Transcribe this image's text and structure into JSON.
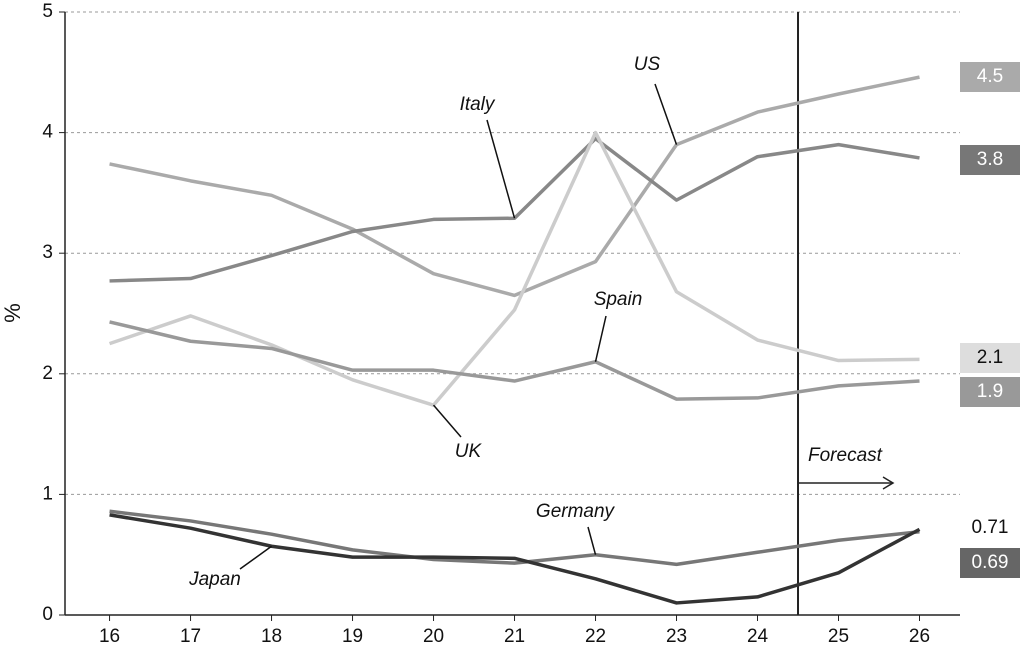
{
  "chart_data": {
    "type": "line",
    "y_label": "%",
    "x": [
      16,
      17,
      18,
      19,
      20,
      21,
      22,
      23,
      24,
      25,
      26
    ],
    "xlim": [
      15.45,
      26.5
    ],
    "xticks": [
      16,
      17,
      18,
      19,
      20,
      21,
      22,
      23,
      24,
      25,
      26
    ],
    "ylim": [
      0,
      5
    ],
    "yticks": [
      0,
      1,
      2,
      3,
      4,
      5
    ],
    "grid": true,
    "forecast": {
      "label": "Forecast",
      "x": 24.5
    },
    "series": [
      {
        "name": "US",
        "color": "#aaaaaa",
        "label_fill": "#aaaaaa",
        "end_label": "4.5",
        "values": [
          3.74,
          3.6,
          3.48,
          3.2,
          2.83,
          2.65,
          2.93,
          3.9,
          4.17,
          4.32,
          4.46
        ]
      },
      {
        "name": "Italy",
        "color": "#888888",
        "label_fill": "#777777",
        "end_label": "3.8",
        "values": [
          2.77,
          2.79,
          2.98,
          3.18,
          3.28,
          3.29,
          3.95,
          3.44,
          3.8,
          3.9,
          3.79
        ]
      },
      {
        "name": "UK",
        "color": "#cccccc",
        "label_fill": "#dddddd",
        "end_label": "2.1",
        "values": [
          2.25,
          2.48,
          2.24,
          1.95,
          1.74,
          2.53,
          4.0,
          2.68,
          2.28,
          2.11,
          2.12
        ]
      },
      {
        "name": "Spain",
        "color": "#999999",
        "label_fill": "#999999",
        "end_label": "1.9",
        "values": [
          2.43,
          2.27,
          2.21,
          2.03,
          2.03,
          1.94,
          2.1,
          1.79,
          1.8,
          1.9,
          1.94
        ]
      },
      {
        "name": "Germany",
        "color": "#777777",
        "label_fill": "#666666",
        "end_label": "0.69",
        "values": [
          0.86,
          0.78,
          0.67,
          0.54,
          0.46,
          0.43,
          0.5,
          0.42,
          0.52,
          0.62,
          0.69
        ]
      },
      {
        "name": "Japan",
        "color": "#333333",
        "end_label": "0.71",
        "values": [
          0.83,
          0.72,
          0.57,
          0.48,
          0.48,
          0.47,
          0.3,
          0.1,
          0.15,
          0.35,
          0.71
        ]
      }
    ]
  }
}
